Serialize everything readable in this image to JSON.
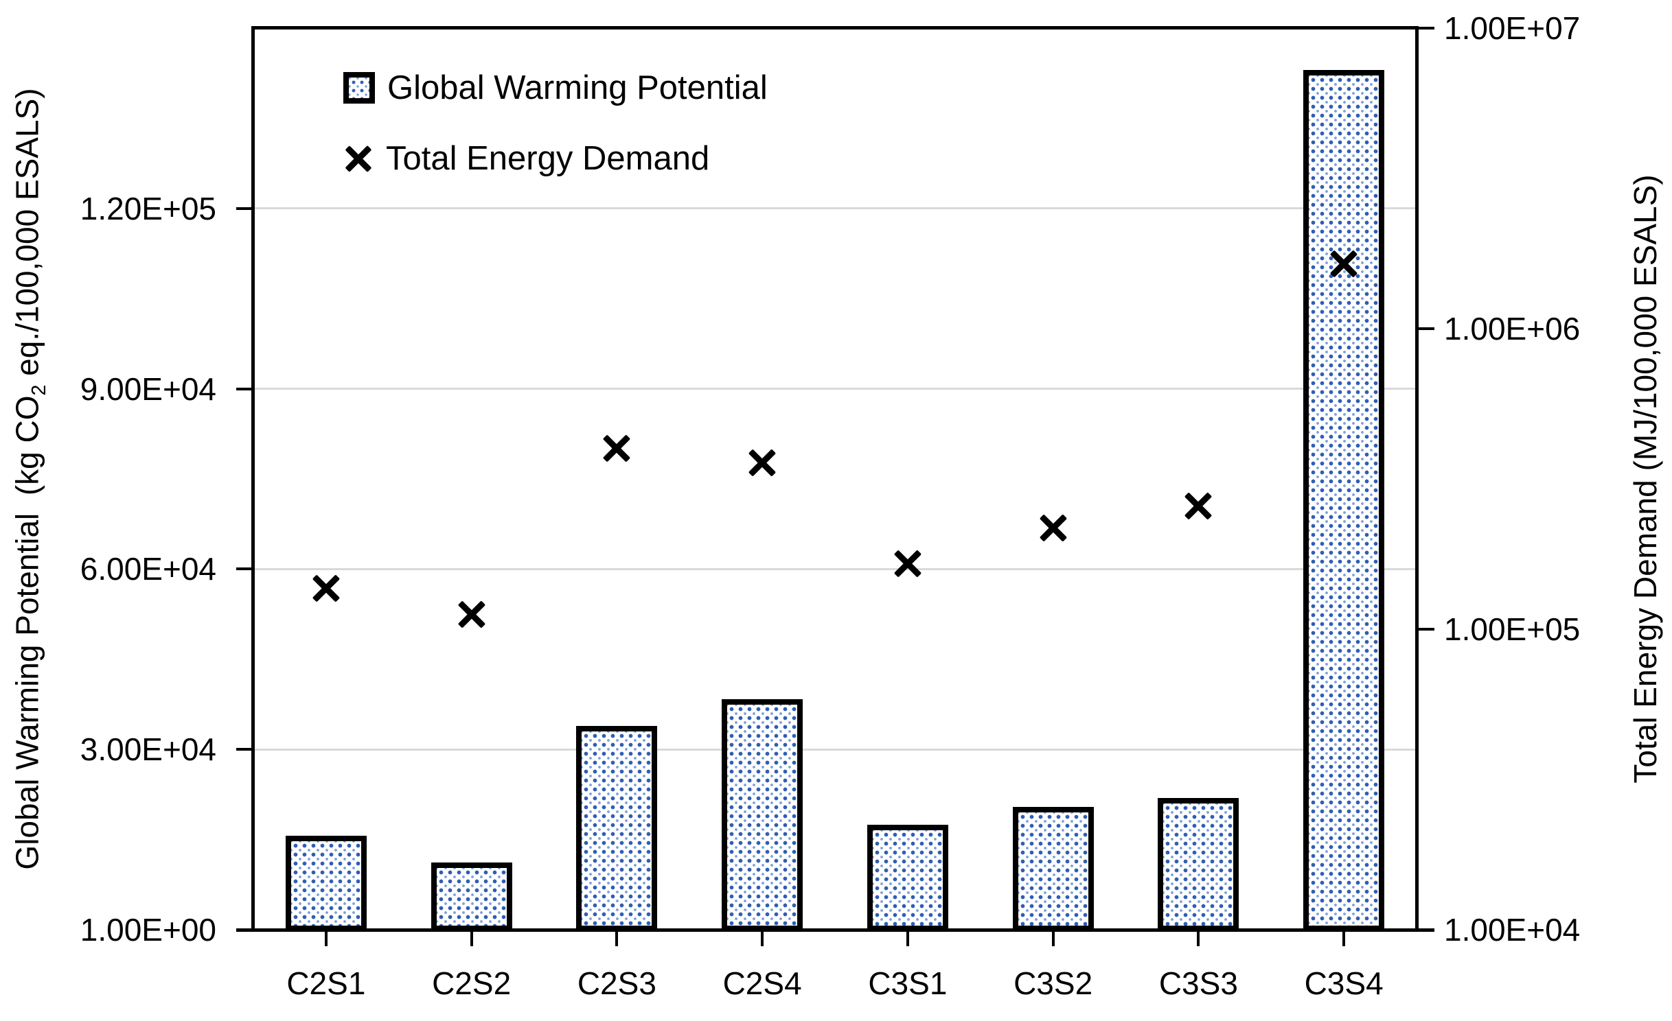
{
  "accent_blue": "#2f5fb3",
  "accent_blue_light": "#7fa0d9",
  "gridline_color": "#d9d9d9",
  "legend": {
    "gwp_label": "Global Warming Potential",
    "ted_label": "Total Energy Demand"
  },
  "left_axis_title": {
    "part1": "Global Warming Potential  (kg CO",
    "sub": "2",
    "part2": " eq./100,000 ESALS)"
  },
  "right_axis_title": "Total Energy Demand (MJ/100,000 ESALS)",
  "chart_data": {
    "type": "bar",
    "subtype": "combo bar + scatter (x markers), dual y-axes",
    "categories": [
      "C2S1",
      "C2S2",
      "C2S3",
      "C2S4",
      "C3S1",
      "C3S2",
      "C3S3",
      "C3S4"
    ],
    "series": [
      {
        "name": "Global Warming Potential",
        "type": "bar",
        "axis": "left",
        "style": "white bar, thick black border, blue dotted pattern fill",
        "values": [
          15600,
          11200,
          33900,
          38400,
          17500,
          20400,
          21900,
          143000
        ]
      },
      {
        "name": "Total Energy Demand",
        "type": "scatter",
        "marker": "x",
        "axis": "right",
        "values": [
          137000,
          112000,
          400000,
          357000,
          165000,
          217000,
          257000,
          1640000
        ]
      }
    ],
    "left_axis": {
      "label": "Global Warming Potential (kg CO2 eq./100,000 ESALS)",
      "scale": "linear",
      "min": 1,
      "max": 150000,
      "tick_labels": [
        "1.00E+00",
        "3.00E+04",
        "6.00E+04",
        "9.00E+04",
        "1.20E+05"
      ],
      "tick_values": [
        1,
        30000,
        60000,
        90000,
        120000
      ]
    },
    "right_axis": {
      "label": "Total Energy Demand (MJ/100,000 ESALS)",
      "scale": "log",
      "min": 10000,
      "max": 10000000,
      "tick_labels": [
        "1.00E+04",
        "1.00E+05",
        "1.00E+06",
        "1.00E+07"
      ],
      "tick_values": [
        10000,
        100000,
        1000000,
        10000000
      ]
    },
    "grid": "horizontal gridlines at left-axis ticks",
    "legend_position": "inside plot, top-left",
    "background": "#ffffff"
  }
}
